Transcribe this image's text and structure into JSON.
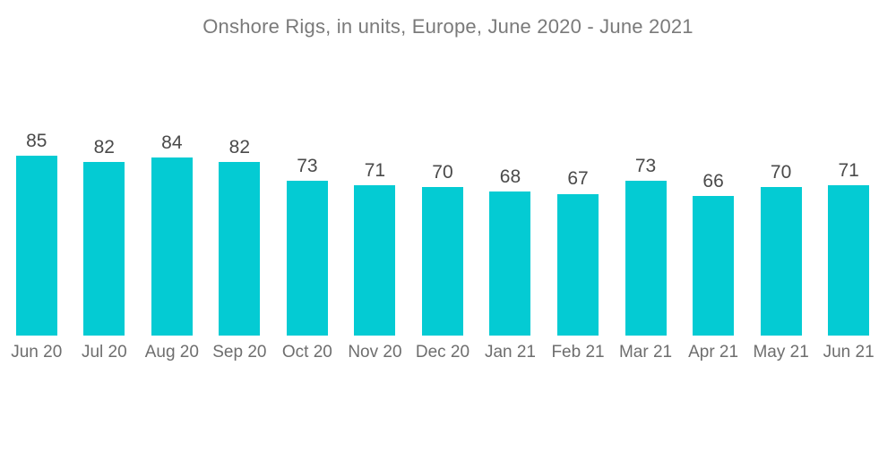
{
  "chart_data": {
    "type": "bar",
    "title": "Onshore Rigs, in units, Europe, June 2020 - June 2021",
    "categories": [
      "Jun 20",
      "Jul 20",
      "Aug 20",
      "Sep 20",
      "Oct 20",
      "Nov 20",
      "Dec 20",
      "Jan 21",
      "Feb 21",
      "Mar 21",
      "Apr 21",
      "May 21",
      "Jun 21"
    ],
    "values": [
      85,
      82,
      84,
      82,
      73,
      71,
      70,
      68,
      67,
      73,
      66,
      70,
      71
    ],
    "xlabel": "",
    "ylabel": "",
    "grid": false,
    "legend": false,
    "axes_shown": false,
    "value_labels_shown": true
  },
  "colors": {
    "bar": "#04cbd3",
    "value_label": "#4a4a4a",
    "axis_label": "#6e6e6e",
    "title": "#7a7a7a",
    "background": "#ffffff"
  }
}
